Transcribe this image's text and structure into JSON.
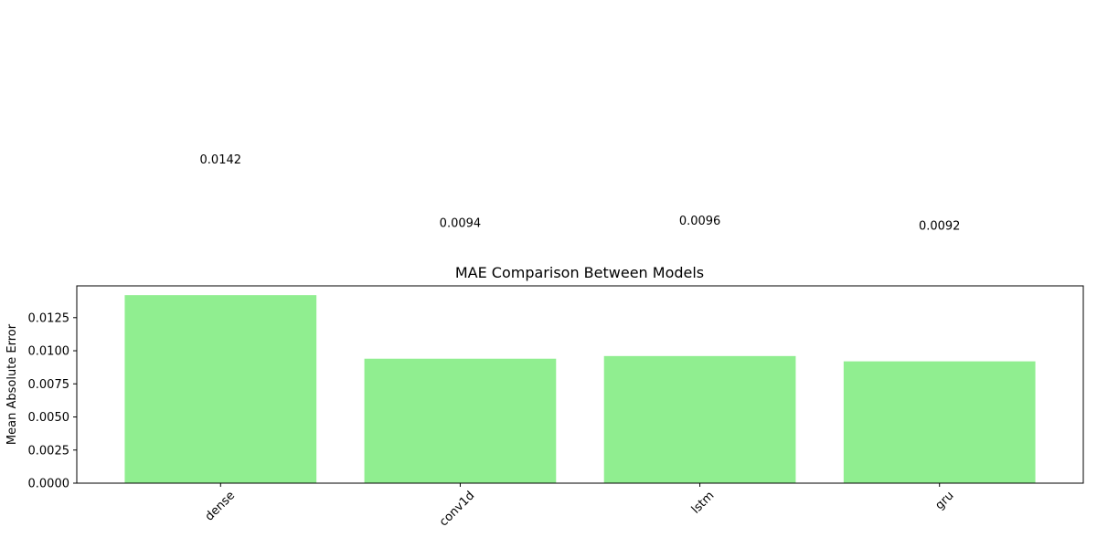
{
  "chart_data": {
    "type": "bar",
    "title": "MAE Comparison Between Models",
    "xlabel": "",
    "ylabel": "Mean Absolute Error",
    "categories": [
      "dense",
      "conv1d",
      "lstm",
      "gru"
    ],
    "values": [
      0.0142,
      0.0094,
      0.0096,
      0.0092
    ],
    "value_labels": [
      "0.0142",
      "0.0094",
      "0.0096",
      "0.0092"
    ],
    "ylim": [
      0,
      0.0149
    ],
    "yticks": [
      0.0,
      0.0025,
      0.005,
      0.0075,
      0.01,
      0.0125
    ],
    "ytick_labels": [
      "0.0000",
      "0.0025",
      "0.0050",
      "0.0075",
      "0.0100",
      "0.0125"
    ],
    "xtick_rotation_deg": 45,
    "grid": false,
    "legend": "none",
    "colors": {
      "bar": "#90ee90",
      "axis": "#000000",
      "background": "#ffffff"
    }
  }
}
